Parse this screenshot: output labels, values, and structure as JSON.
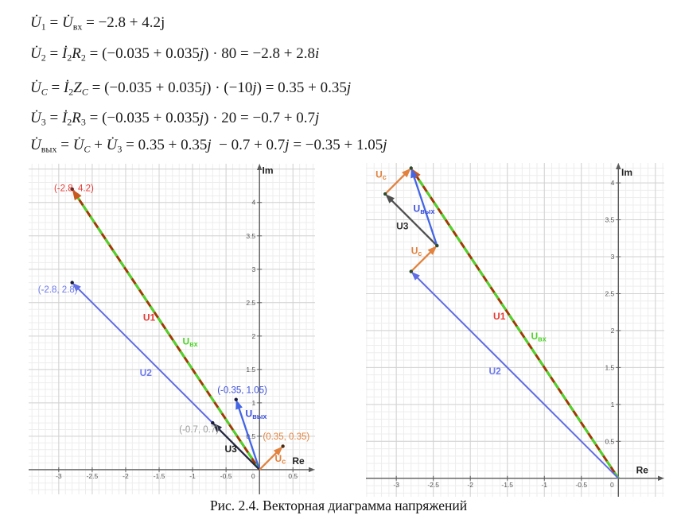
{
  "figure_caption": "Рис. 2.4. Векторная диаграмма напряжений",
  "formulas": {
    "lines": [
      {
        "tokens": [
          {
            "t": "U̇",
            "it": true
          },
          {
            "t": "1",
            "sub": true
          },
          {
            "t": " = "
          },
          {
            "t": "U̇",
            "it": true
          },
          {
            "t": "вх",
            "sub": true
          },
          {
            "t": " = −2.8 + 4.2j"
          }
        ]
      },
      {
        "tokens": [
          {
            "t": "U̇",
            "it": true
          },
          {
            "t": "2",
            "sub": true
          },
          {
            "t": " = "
          },
          {
            "t": "İ",
            "it": true
          },
          {
            "t": "2",
            "sub": true
          },
          {
            "t": "R",
            "it": true
          },
          {
            "t": "2",
            "sub": true
          },
          {
            "t": " = (−0.035 + 0.035"
          },
          {
            "t": "j",
            "it": true
          },
          {
            "t": ") · 80 = −2.8 + 2.8"
          },
          {
            "t": "i",
            "it": true
          }
        ]
      },
      {
        "tokens": [
          {
            "t": "U̇",
            "it": true
          },
          {
            "t": "C",
            "sub": true,
            "it": true
          },
          {
            "t": " = "
          },
          {
            "t": "İ",
            "it": true
          },
          {
            "t": "2",
            "sub": true
          },
          {
            "t": "Z",
            "it": true
          },
          {
            "t": "C",
            "sub": true,
            "it": true
          },
          {
            "t": " = (−0.035 + 0.035"
          },
          {
            "t": "j",
            "it": true
          },
          {
            "t": ") · (−10"
          },
          {
            "t": "j",
            "it": true
          },
          {
            "t": ") = 0.35 + 0.35"
          },
          {
            "t": "j",
            "it": true
          }
        ]
      },
      {
        "tokens": [
          {
            "t": "U̇",
            "it": true
          },
          {
            "t": "3",
            "sub": true
          },
          {
            "t": " = "
          },
          {
            "t": "İ",
            "it": true
          },
          {
            "t": "2",
            "sub": true
          },
          {
            "t": "R",
            "it": true
          },
          {
            "t": "3",
            "sub": true
          },
          {
            "t": " = (−0.035 + 0.035"
          },
          {
            "t": "j",
            "it": true
          },
          {
            "t": ") · 20 = −0.7 + 0.7"
          },
          {
            "t": "j",
            "it": true
          }
        ]
      },
      {
        "tokens": [
          {
            "t": "U̇",
            "it": true
          },
          {
            "t": "вых",
            "sub": true
          },
          {
            "t": " = "
          },
          {
            "t": "U̇",
            "it": true
          },
          {
            "t": "C",
            "sub": true,
            "it": true
          },
          {
            "t": " + "
          },
          {
            "t": "U̇",
            "it": true
          },
          {
            "t": "3",
            "sub": true
          },
          {
            "t": " = 0.35 + 0.35"
          },
          {
            "t": "j",
            "it": true
          },
          {
            "t": "  − 0.7 + 0.7"
          },
          {
            "t": "j",
            "it": true
          },
          {
            "t": " = −0.35 + 1.05"
          },
          {
            "t": "j",
            "it": true
          }
        ]
      }
    ]
  },
  "chart_data": [
    {
      "type": "vector",
      "name": "voltage-vectors-from-origin",
      "axis": {
        "xlabel": "Re",
        "ylabel": "Im",
        "xrange": [
          -3.45,
          0.83
        ],
        "yrange": [
          -0.37,
          4.58
        ],
        "minor_step": 0.1,
        "major_step": 0.5,
        "grid": true,
        "xticks": [
          {
            "v": -3,
            "t": "-3"
          },
          {
            "v": -2.5,
            "t": "-2.5"
          },
          {
            "v": -2,
            "t": "-2"
          },
          {
            "v": -1.5,
            "t": "-1.5"
          },
          {
            "v": -1,
            "t": "-1"
          },
          {
            "v": -0.5,
            "t": "-0.5"
          },
          {
            "v": 0,
            "t": "0",
            "dx": -8
          },
          {
            "v": 0.5,
            "t": "0.5"
          }
        ],
        "yticks": [
          {
            "v": 0.5,
            "t": "0.5"
          },
          {
            "v": 1,
            "t": "1"
          },
          {
            "v": 1.5,
            "t": "1.5"
          },
          {
            "v": 2,
            "t": "2"
          },
          {
            "v": 2.5,
            "t": "2.5"
          },
          {
            "v": 3,
            "t": "3"
          },
          {
            "v": 3.5,
            "t": "3.5"
          },
          {
            "v": 4,
            "t": "4"
          }
        ]
      },
      "colors": {
        "grid_minor": "#ededed",
        "grid_major": "#d2d2d2",
        "axis": "#5b5b5b",
        "tick_text": "#555555"
      },
      "vectors": [
        {
          "name": "U1",
          "from": [
            0,
            0
          ],
          "to": [
            -2.8,
            4.2
          ],
          "color": "#9e3a02",
          "width": 3,
          "head": "#c85a1e",
          "overlay": {
            "color": "#4fd32a",
            "dash": "9 8"
          }
        },
        {
          "name": "U2",
          "from": [
            0,
            0
          ],
          "to": [
            -2.8,
            2.8
          ],
          "color": "#5f6ce4",
          "width": 2
        },
        {
          "name": "Uвых",
          "from": [
            0,
            0
          ],
          "to": [
            -0.35,
            1.05
          ],
          "color": "#4365e6",
          "width": 2.3
        },
        {
          "name": "U3",
          "from": [
            0,
            0
          ],
          "to": [
            -0.7,
            0.7
          ],
          "color": "#262a40",
          "width": 2.3
        },
        {
          "name": "Uc",
          "from": [
            0,
            0
          ],
          "to": [
            0.35,
            0.35
          ],
          "color": "#e2823e",
          "width": 2.3
        }
      ],
      "points": [
        {
          "x": -2.8,
          "y": 4.2,
          "color": "#401010"
        },
        {
          "x": -2.8,
          "y": 2.8,
          "color": "#16183a"
        },
        {
          "x": -0.35,
          "y": 1.05,
          "color": "#16183a"
        },
        {
          "x": -0.7,
          "y": 0.7,
          "color": "#16183a"
        },
        {
          "x": 0.35,
          "y": 0.35,
          "color": "#4a2a10"
        }
      ],
      "labels": [
        {
          "t": "(-2.8, 4.2)",
          "x": -3.07,
          "y": 4.17,
          "color": "#e53b34"
        },
        {
          "t": "(-2.8, 2.8)",
          "x": -3.31,
          "y": 2.65,
          "color": "#6d7aec"
        },
        {
          "t": "U1",
          "x": -1.74,
          "y": 2.23,
          "color": "#e53b34",
          "bold": true
        },
        {
          "t": "U",
          "sub": "вх",
          "x": -1.15,
          "y": 1.87,
          "color": "#4fd32a",
          "bold": true
        },
        {
          "t": "U2",
          "x": -1.79,
          "y": 1.4,
          "color": "#6d7aec",
          "bold": true
        },
        {
          "t": "(-0.35, 1.05)",
          "x": -0.63,
          "y": 1.15,
          "color": "#3b50dc"
        },
        {
          "t": "U",
          "sub": "вых",
          "x": -0.21,
          "y": 0.79,
          "color": "#3b50dc",
          "bold": true
        },
        {
          "t": "U3",
          "x": -0.52,
          "y": 0.26,
          "color": "#1a1a1a",
          "bold": true
        },
        {
          "t": "(-0.7, 0.7)",
          "x": -1.2,
          "y": 0.56,
          "color": "#9a9a9a"
        },
        {
          "t": "(0.35, 0.35)",
          "x": 0.05,
          "y": 0.45,
          "color": "#e2823e"
        },
        {
          "t": "U",
          "sub": "c",
          "x": 0.23,
          "y": 0.12,
          "color": "#e2823e",
          "bold": true
        },
        {
          "t": "Re",
          "x": 0.49,
          "y": 0.08,
          "color": "#222222",
          "bold": true
        },
        {
          "t": "Im",
          "x": 0.04,
          "y": 4.43,
          "color": "#222222",
          "bold": true
        }
      ]
    },
    {
      "type": "vector",
      "name": "voltage-vectors-head-to-tail",
      "axis": {
        "xlabel": "Re",
        "ylabel": "Im",
        "xrange": [
          -3.41,
          0.62
        ],
        "yrange": [
          -0.25,
          4.27
        ],
        "minor_step": 0.1,
        "major_step": 0.5,
        "grid": true,
        "xticks": [
          {
            "v": -3,
            "t": "-3"
          },
          {
            "v": -2.5,
            "t": "-2.5"
          },
          {
            "v": -2,
            "t": "-2"
          },
          {
            "v": -1.5,
            "t": "-1.5"
          },
          {
            "v": -1,
            "t": "-1"
          },
          {
            "v": -0.5,
            "t": "-0.5"
          },
          {
            "v": 0,
            "t": "0",
            "dx": -8
          }
        ],
        "yticks": [
          {
            "v": 0.5,
            "t": "0.5"
          },
          {
            "v": 1,
            "t": "1"
          },
          {
            "v": 1.5,
            "t": "1.5"
          },
          {
            "v": 2,
            "t": "2"
          },
          {
            "v": 2.5,
            "t": "2.5"
          },
          {
            "v": 3,
            "t": "3"
          },
          {
            "v": 3.5,
            "t": "3.5"
          },
          {
            "v": 4,
            "t": "4"
          }
        ]
      },
      "colors": {
        "grid_minor": "#ededed",
        "grid_major": "#d2d2d2",
        "axis": "#5b5b5b",
        "tick_text": "#555555"
      },
      "vectors": [
        {
          "name": "U1",
          "from": [
            0,
            0
          ],
          "to": [
            -2.8,
            4.2
          ],
          "color": "#9e3a02",
          "width": 3,
          "head": "#c85a1e",
          "overlay": {
            "color": "#4fd32a",
            "dash": "9 8"
          }
        },
        {
          "name": "U2",
          "from": [
            0,
            0
          ],
          "to": [
            -2.8,
            2.8
          ],
          "color": "#5f6ce4",
          "width": 2
        },
        {
          "name": "Uc",
          "from": [
            -2.8,
            2.8
          ],
          "to": [
            -2.45,
            3.15
          ],
          "color": "#e2823e",
          "width": 2.3
        },
        {
          "name": "U3",
          "from": [
            -2.45,
            3.15
          ],
          "to": [
            -3.15,
            3.85
          ],
          "color": "#4f4f4f",
          "width": 2.3
        },
        {
          "name": "Uc",
          "from": [
            -3.15,
            3.85
          ],
          "to": [
            -2.8,
            4.2
          ],
          "color": "#e2823e",
          "width": 2.3
        },
        {
          "name": "Uвых",
          "from": [
            -2.45,
            3.15
          ],
          "to": [
            -2.8,
            4.2
          ],
          "color": "#4365e6",
          "width": 2.3
        }
      ],
      "points": [
        {
          "x": -2.8,
          "y": 2.8,
          "color": "#2c4a2c"
        },
        {
          "x": -2.45,
          "y": 3.15,
          "color": "#2c4a2c"
        },
        {
          "x": -3.15,
          "y": 3.85,
          "color": "#2c4a2c"
        },
        {
          "x": -2.8,
          "y": 4.2,
          "color": "#2c4a2c"
        }
      ],
      "labels": [
        {
          "t": "U",
          "sub": "c",
          "x": -3.28,
          "y": 4.07,
          "color": "#e2823e",
          "bold": true
        },
        {
          "t": "U",
          "sub": "вых",
          "x": -2.77,
          "y": 3.61,
          "color": "#3b50dc",
          "bold": true
        },
        {
          "t": "U3",
          "x": -3.0,
          "y": 3.37,
          "color": "#333333",
          "bold": true
        },
        {
          "t": "U",
          "sub": "c",
          "x": -2.8,
          "y": 3.04,
          "color": "#e2823e",
          "bold": true
        },
        {
          "t": "U1",
          "x": -1.69,
          "y": 2.15,
          "color": "#e53b34",
          "bold": true
        },
        {
          "t": "U",
          "sub": "вх",
          "x": -1.18,
          "y": 1.88,
          "color": "#4fd32a",
          "bold": true
        },
        {
          "t": "U2",
          "x": -1.75,
          "y": 1.41,
          "color": "#6d7aec",
          "bold": true
        },
        {
          "t": "Re",
          "x": 0.24,
          "y": 0.07,
          "color": "#222222",
          "bold": true
        },
        {
          "t": "Im",
          "x": 0.04,
          "y": 4.1,
          "color": "#222222",
          "bold": true
        }
      ]
    }
  ]
}
